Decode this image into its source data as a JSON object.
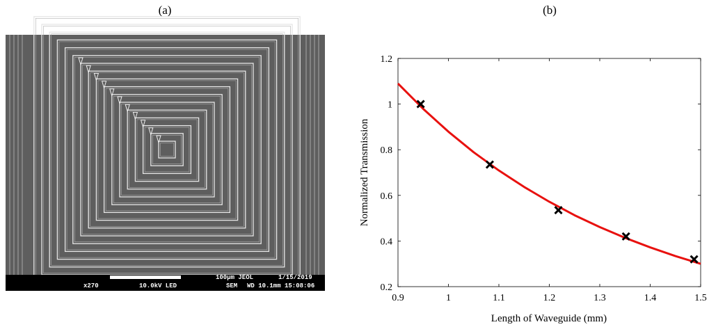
{
  "panels": {
    "a": "(a)",
    "b": "(b)"
  },
  "sem": {
    "scale": "100µm JEOL",
    "date": "1/15/2019",
    "magnification": "x270",
    "voltage": "10.0kV LED",
    "mode": "SEM",
    "wd_time": "WD 10.1mm 15:08:06"
  },
  "chart_data": {
    "type": "scatter",
    "x_label": "Length of Waveguide (mm)",
    "y_label": "Normalized Transmission",
    "xlim": [
      0.9,
      1.5
    ],
    "xticks": [
      0.9,
      1,
      1.1,
      1.2,
      1.3,
      1.4,
      1.5
    ],
    "ylim": [
      0.2,
      1.2
    ],
    "yticks": [
      0.2,
      0.4,
      0.6,
      0.8,
      1,
      1.2
    ],
    "series": [
      {
        "type": "scatter",
        "color": "#000000",
        "x": [
          0.945,
          1.082,
          1.218,
          1.352,
          1.487
        ],
        "values": [
          1.0,
          0.735,
          0.535,
          0.42,
          0.32
        ]
      },
      {
        "type": "line",
        "color": "#e8110f",
        "x": [
          0.9,
          0.95,
          1.0,
          1.05,
          1.1,
          1.15,
          1.2,
          1.25,
          1.3,
          1.35,
          1.4,
          1.45,
          1.5
        ],
        "values": [
          1.09,
          0.979,
          0.879,
          0.789,
          0.709,
          0.637,
          0.572,
          0.513,
          0.461,
          0.414,
          0.372,
          0.334,
          0.3
        ]
      }
    ]
  }
}
